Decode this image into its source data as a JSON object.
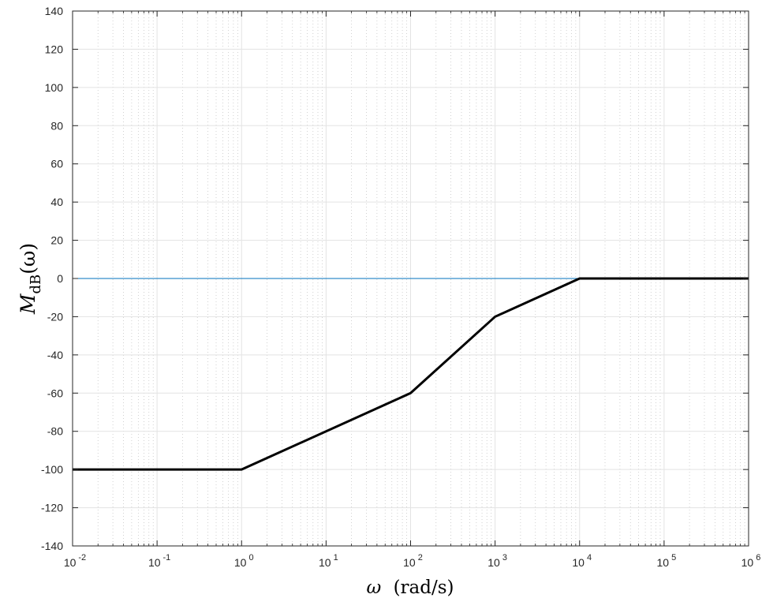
{
  "chart_data": {
    "type": "line",
    "title": "",
    "xscale": "log",
    "xlim": [
      0.01,
      1000000
    ],
    "ylim": [
      -140,
      140
    ],
    "grid": true,
    "minor_grid": true,
    "xlabel": {
      "symbol": "ω",
      "unit": "(rad/s)"
    },
    "ylabel": {
      "base": "M",
      "subscript": "dB",
      "arg": "(ω)"
    },
    "xticks": [
      {
        "value": 0.01,
        "base": "10",
        "exp": "-2"
      },
      {
        "value": 0.1,
        "base": "10",
        "exp": "-1"
      },
      {
        "value": 1,
        "base": "10",
        "exp": "0"
      },
      {
        "value": 10,
        "base": "10",
        "exp": "1"
      },
      {
        "value": 100,
        "base": "10",
        "exp": "2"
      },
      {
        "value": 1000,
        "base": "10",
        "exp": "3"
      },
      {
        "value": 10000,
        "base": "10",
        "exp": "4"
      },
      {
        "value": 100000,
        "base": "10",
        "exp": "5"
      },
      {
        "value": 1000000,
        "base": "10",
        "exp": "6"
      }
    ],
    "yticks": [
      140,
      120,
      100,
      80,
      60,
      40,
      20,
      0,
      -20,
      -40,
      -60,
      -80,
      -100,
      -120,
      -140
    ],
    "series": [
      {
        "color": "#0072BD",
        "x": [
          0.01,
          1000000
        ],
        "y": [
          0,
          0
        ]
      },
      {
        "color": "#000000",
        "x": [
          0.01,
          1,
          100,
          1000,
          10000,
          1000000
        ],
        "y": [
          -100,
          -100,
          -60,
          -20,
          0,
          0
        ]
      }
    ]
  }
}
